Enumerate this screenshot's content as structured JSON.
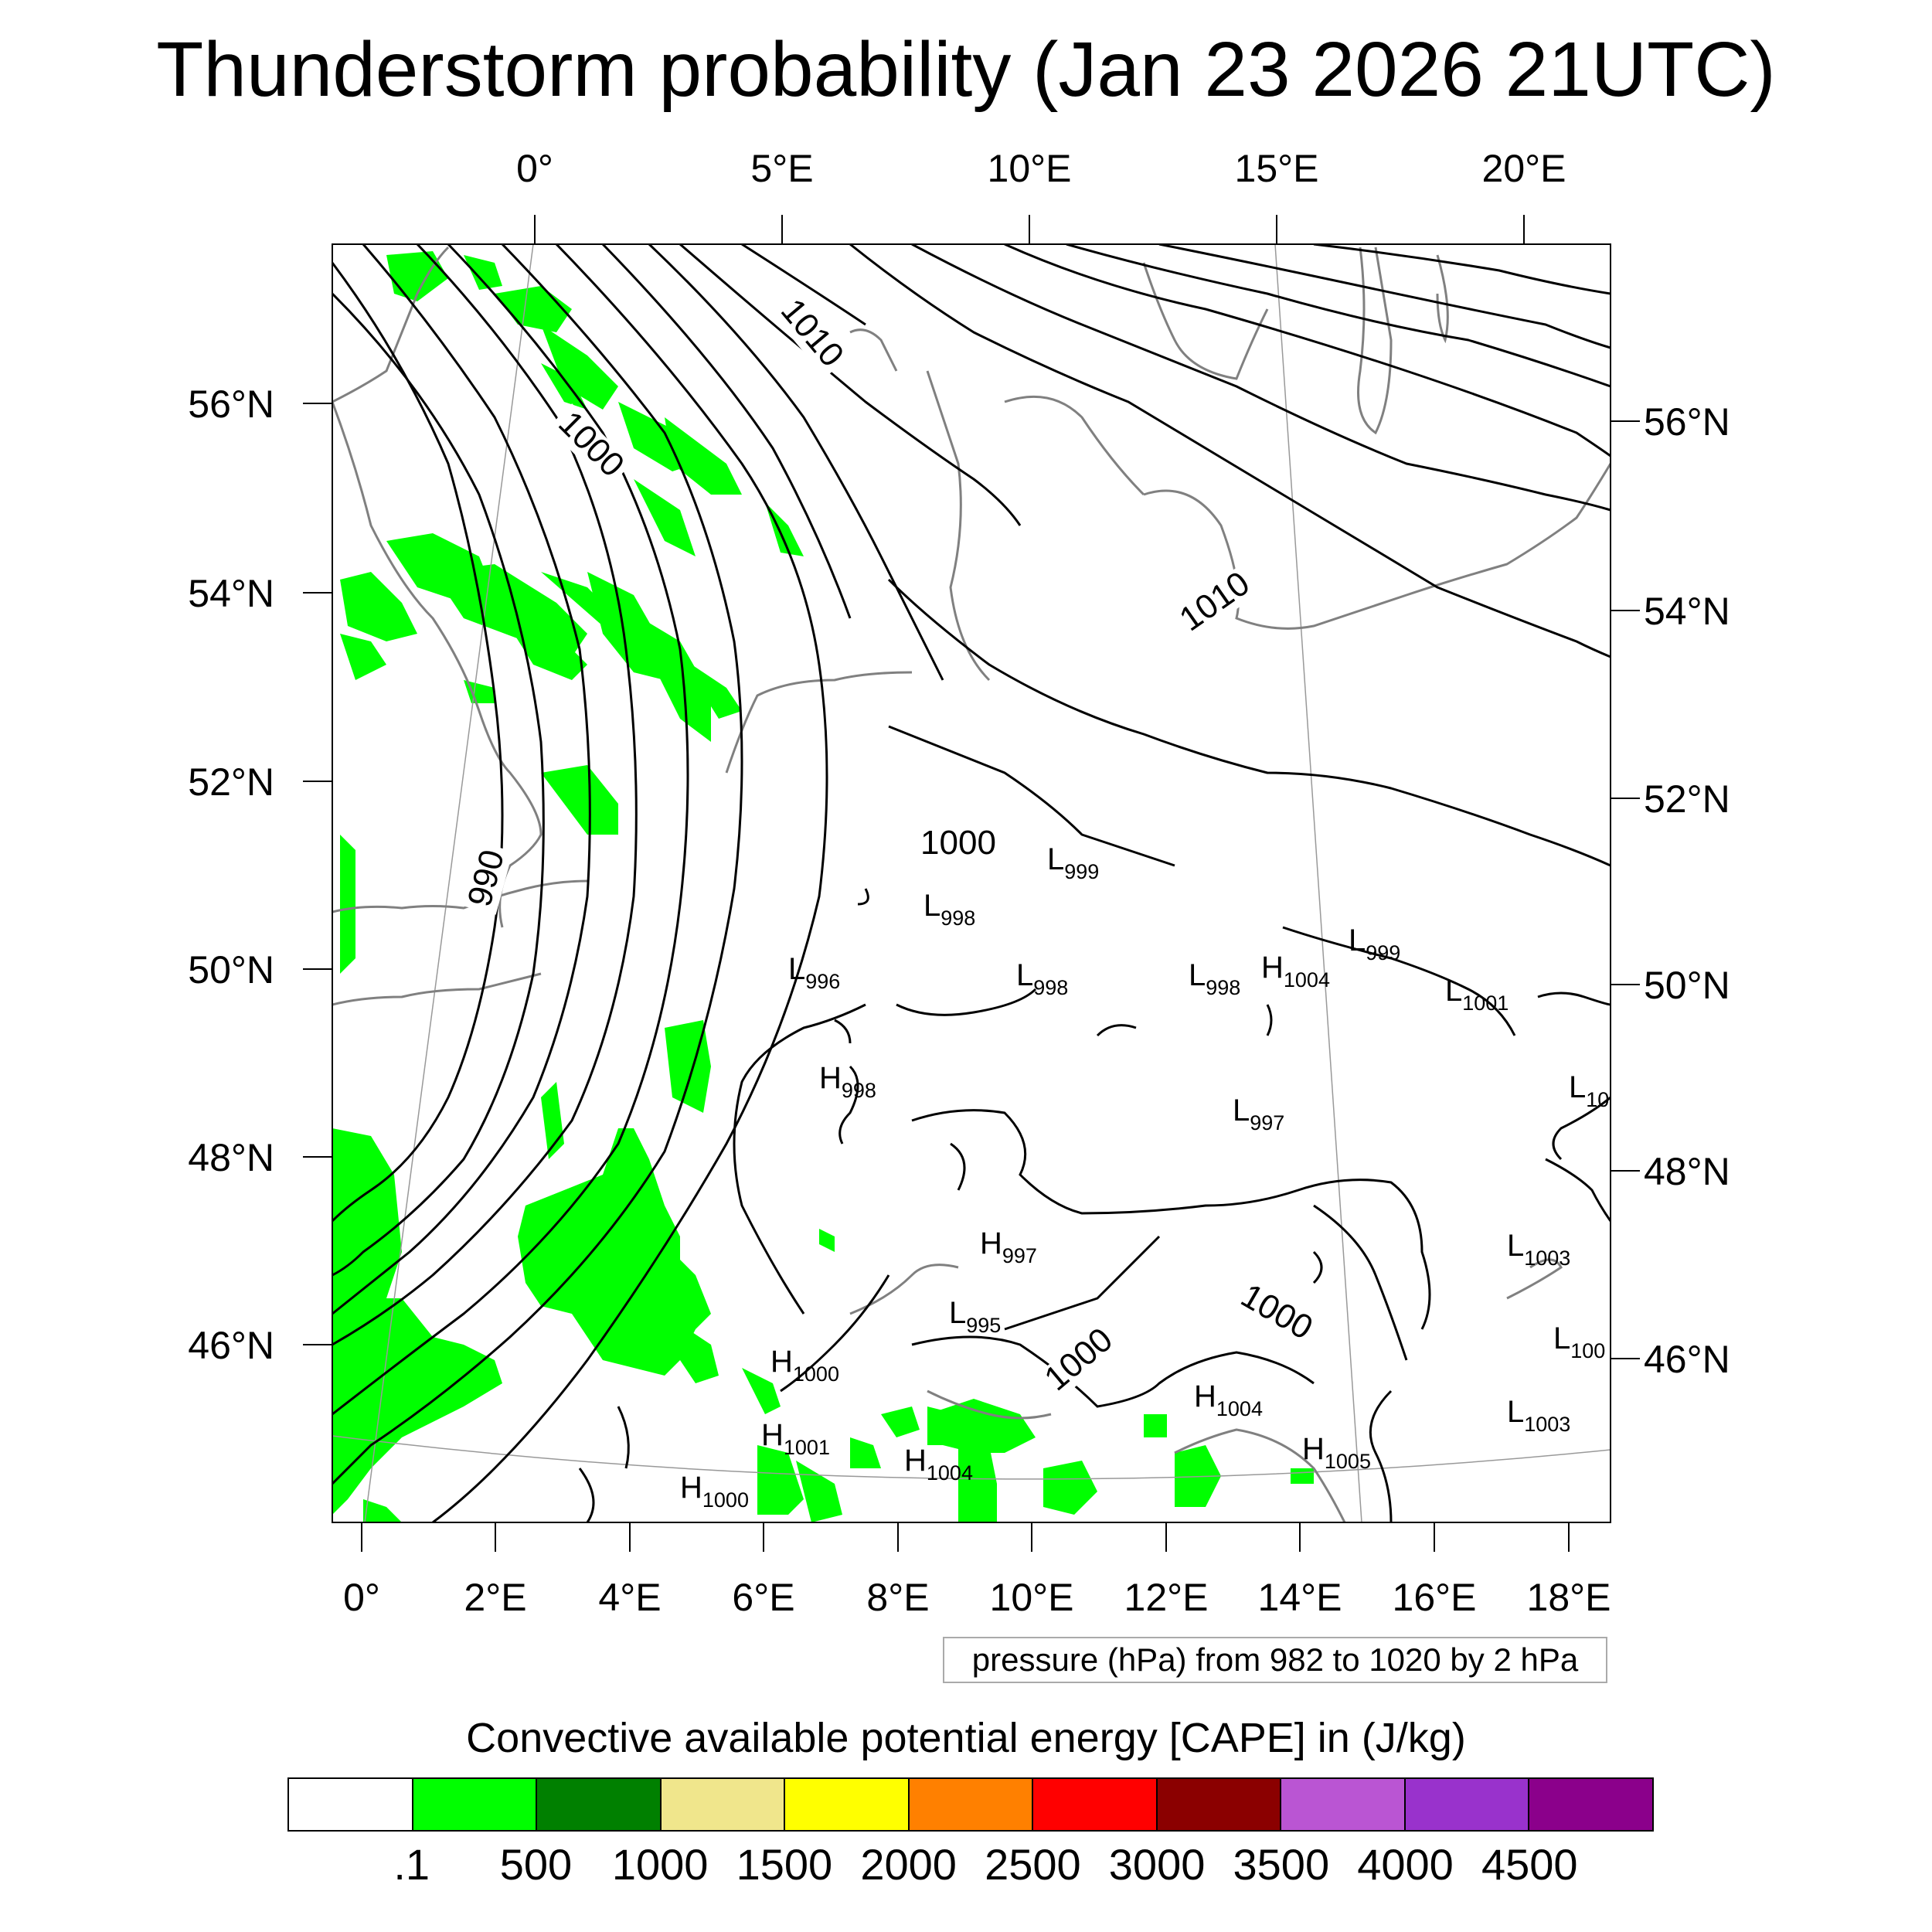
{
  "title": "Thunderstorm probability (Jan 23 2026 21UTC)",
  "map": {
    "top_lon_labels": [
      "0°",
      "5°E",
      "10°E",
      "15°E",
      "20°E"
    ],
    "bottom_lon_labels": [
      "0°",
      "2°E",
      "4°E",
      "6°E",
      "8°E",
      "10°E",
      "12°E",
      "14°E",
      "16°E",
      "18°E"
    ],
    "left_lat_labels": [
      "56°N",
      "54°N",
      "52°N",
      "50°N",
      "48°N",
      "46°N"
    ],
    "right_lat_labels": [
      "56°N",
      "54°N",
      "52°N",
      "50°N",
      "48°N",
      "46°N"
    ],
    "isobar_labels": [
      "1010",
      "1000",
      "990",
      "1010",
      "1000",
      "1000",
      "1000"
    ],
    "pressure_centers": [
      {
        "type": "L",
        "value": "999"
      },
      {
        "type": "L",
        "value": "998"
      },
      {
        "type": "L",
        "value": "996"
      },
      {
        "type": "L",
        "value": "998"
      },
      {
        "type": "L",
        "value": "998"
      },
      {
        "type": "H",
        "value": "1004"
      },
      {
        "type": "L",
        "value": "999"
      },
      {
        "type": "L",
        "value": "1001"
      },
      {
        "type": "H",
        "value": "998"
      },
      {
        "type": "L",
        "value": "997"
      },
      {
        "type": "L",
        "value": "10"
      },
      {
        "type": "H",
        "value": "997"
      },
      {
        "type": "L",
        "value": "1003"
      },
      {
        "type": "L",
        "value": "995"
      },
      {
        "type": "L",
        "value": "100"
      },
      {
        "type": "H",
        "value": "1000"
      },
      {
        "type": "H",
        "value": "1004"
      },
      {
        "type": "L",
        "value": "1003"
      },
      {
        "type": "H",
        "value": "1001"
      },
      {
        "type": "H",
        "value": "1004"
      },
      {
        "type": "H",
        "value": "1005"
      },
      {
        "type": "H",
        "value": "1000"
      }
    ],
    "colors": {
      "cape_fill": "#00ff00",
      "isobar": "#000000",
      "coastline": "#808080",
      "frame": "#000000"
    }
  },
  "pressure_note": "pressure (hPa) from 982 to 1020 by 2 hPa",
  "legend": {
    "title": "Convective available potential energy [CAPE] in (J/kg)",
    "colors": [
      "#ffffff",
      "#00ff00",
      "#008000",
      "#f0e68c",
      "#ffff00",
      "#ff8000",
      "#ff0000",
      "#8b0000",
      "#ba55d3",
      "#9932cc",
      "#8b008b"
    ],
    "labels": [
      ".1",
      "500",
      "1000",
      "1500",
      "2000",
      "2500",
      "3000",
      "3500",
      "4000",
      "4500"
    ]
  }
}
